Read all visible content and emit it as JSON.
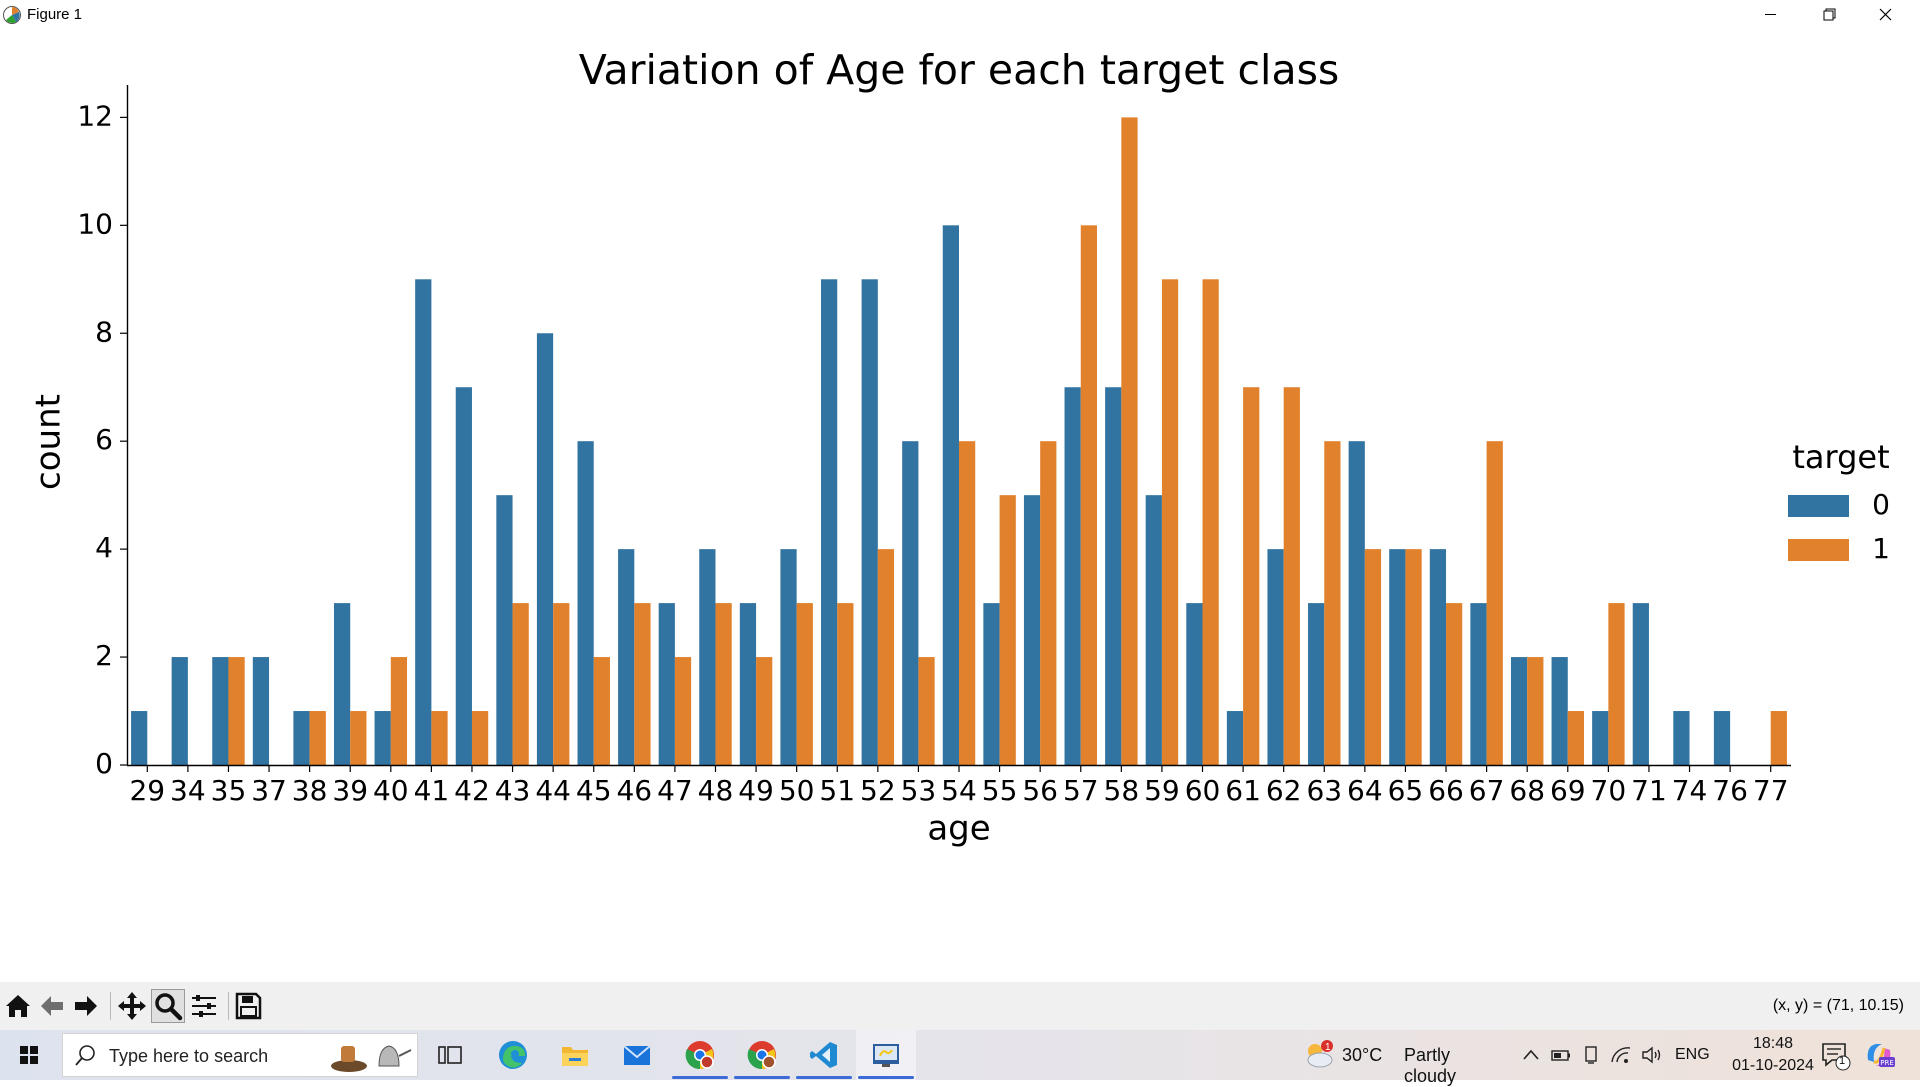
{
  "window": {
    "title": "Figure 1",
    "controls": [
      "minimize",
      "maximize",
      "close"
    ]
  },
  "colors": {
    "series_0": "#3274a1",
    "series_1": "#e1812c",
    "toolbar_bg": "#f0f0f0",
    "accent": "#3c6ad7"
  },
  "chart_data": {
    "type": "bar",
    "title": "Variation of Age for each target class",
    "xlabel": "age",
    "ylabel": "count",
    "ylim": [
      0,
      12.6
    ],
    "yticks": [
      0,
      2,
      4,
      6,
      8,
      10,
      12
    ],
    "categories": [
      "29",
      "34",
      "35",
      "37",
      "38",
      "39",
      "40",
      "41",
      "42",
      "43",
      "44",
      "45",
      "46",
      "47",
      "48",
      "49",
      "50",
      "51",
      "52",
      "53",
      "54",
      "55",
      "56",
      "57",
      "58",
      "59",
      "60",
      "61",
      "62",
      "63",
      "64",
      "65",
      "66",
      "67",
      "68",
      "69",
      "70",
      "71",
      "74",
      "76",
      "77"
    ],
    "series": [
      {
        "name": "0",
        "values": [
          1,
          2,
          2,
          2,
          1,
          3,
          1,
          9,
          7,
          5,
          8,
          6,
          4,
          3,
          4,
          3,
          4,
          9,
          9,
          6,
          10,
          3,
          5,
          7,
          7,
          5,
          3,
          1,
          4,
          3,
          6,
          4,
          4,
          3,
          2,
          2,
          1,
          3,
          1,
          1,
          0
        ]
      },
      {
        "name": "1",
        "values": [
          0,
          0,
          2,
          0,
          1,
          1,
          2,
          1,
          1,
          3,
          3,
          2,
          3,
          2,
          3,
          2,
          3,
          3,
          4,
          2,
          6,
          5,
          6,
          10,
          12,
          9,
          9,
          7,
          7,
          6,
          4,
          4,
          3,
          6,
          2,
          1,
          3,
          0,
          0,
          0,
          1
        ]
      }
    ],
    "legend": {
      "title": "target",
      "position": "center-right"
    },
    "grid": false
  },
  "toolbar": {
    "buttons": [
      "home-icon",
      "back-icon",
      "forward-icon",
      "pan-icon",
      "zoom-icon",
      "configure-subplots-icon",
      "save-icon"
    ],
    "coordinates": "(x, y) = (71, 10.15)"
  },
  "taskbar": {
    "search_placeholder": "Type here to search",
    "weather": {
      "temp": "30°C",
      "condition": "Partly cloudy",
      "badge": "1"
    },
    "language": "ENG",
    "time": "18:48",
    "date": "01-10-2024",
    "notification_count": "1",
    "apps": [
      "task-view-icon",
      "edge-icon",
      "file-explorer-icon",
      "mail-icon",
      "chrome-icon",
      "chrome-profile-icon",
      "vscode-icon",
      "python-figure-icon"
    ]
  }
}
